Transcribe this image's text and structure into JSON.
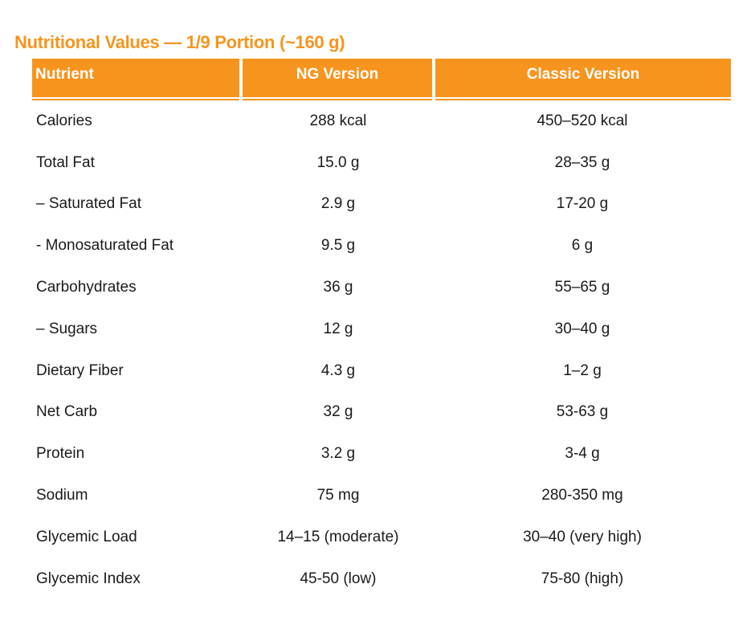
{
  "title": "Nutritional Values — 1/9 Portion (~160 g)",
  "table": {
    "headers": [
      "Nutrient",
      "NG Version",
      "Classic Version"
    ],
    "rows": [
      [
        "Calories",
        "288 kcal",
        "450–520 kcal"
      ],
      [
        "Total Fat",
        "15.0 g",
        "28–35 g"
      ],
      [
        "– Saturated Fat",
        "2.9 g",
        "17-20 g"
      ],
      [
        "- Monosaturated Fat",
        "9.5 g",
        "6 g"
      ],
      [
        "Carbohydrates",
        "36 g",
        "55–65 g"
      ],
      [
        "– Sugars",
        "12 g",
        "30–40 g"
      ],
      [
        "Dietary Fiber",
        "4.3 g",
        "1–2 g"
      ],
      [
        "Net Carb",
        "32 g",
        "53-63 g"
      ],
      [
        "Protein",
        "3.2 g",
        "3-4 g"
      ],
      [
        "Sodium",
        "75 mg",
        "280-350 mg"
      ],
      [
        "Glycemic Load",
        "14–15 (moderate)",
        "30–40 (very high)"
      ],
      [
        "Glycemic Index",
        "45-50 (low)",
        "75-80 (high)"
      ]
    ]
  },
  "colors": {
    "accent": "#f7941d",
    "header_text": "#ffffff",
    "body_text": "#1a1a1a"
  }
}
